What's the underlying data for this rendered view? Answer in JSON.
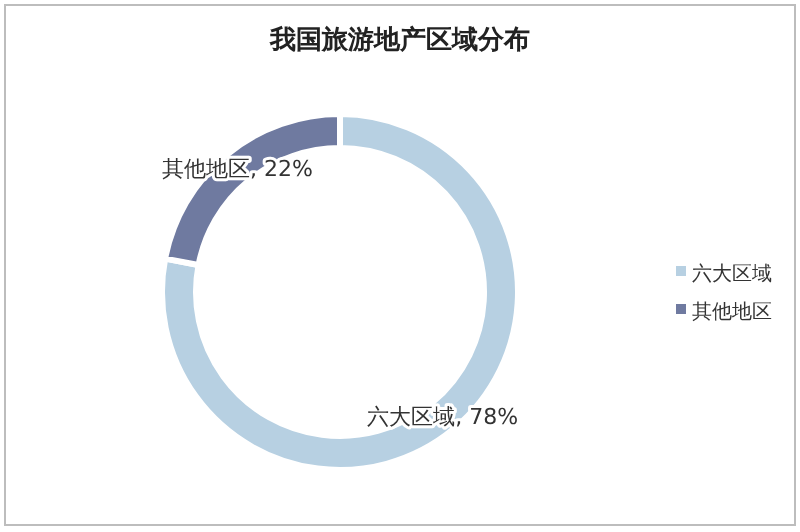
{
  "chart_data": {
    "type": "donut",
    "title": "我国旅游地产区域分布",
    "categories": [
      "六大区域",
      "其他地区"
    ],
    "values": [
      78,
      22
    ],
    "colors": [
      "#b7d0e2",
      "#6f7aa0"
    ],
    "value_labels": [
      "六大区域, 78%",
      "其他地区, 22%"
    ],
    "legend": "right"
  }
}
